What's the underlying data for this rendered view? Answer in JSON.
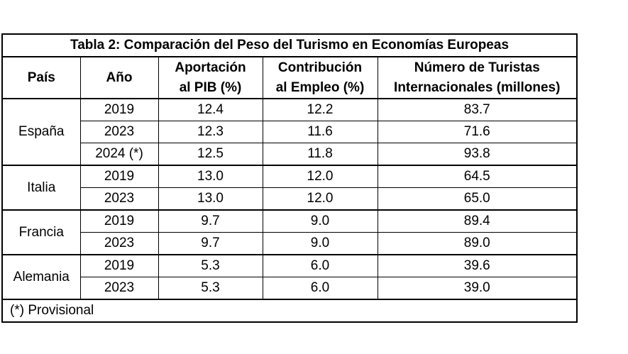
{
  "table": {
    "title": "Tabla 2: Comparación del Peso del Turismo en Economías Europeas",
    "headers": {
      "country": "País",
      "year": "Año",
      "gdp_line1": "Aportación",
      "gdp_line2": "al PIB (%)",
      "emp_line1": "Contribución",
      "emp_line2": "al Empleo (%)",
      "tour_line1": "Número de Turistas",
      "tour_line2": "Internacionales (millones)"
    },
    "groups": [
      {
        "country": "España",
        "rows": [
          {
            "year": "2019",
            "gdp": "12.4",
            "employment": "12.2",
            "tourists": "83.7"
          },
          {
            "year": "2023",
            "gdp": "12.3",
            "employment": "11.6",
            "tourists": "71.6"
          },
          {
            "year": "2024 (*)",
            "gdp": "12.5",
            "employment": "11.8",
            "tourists": "93.8"
          }
        ]
      },
      {
        "country": "Italia",
        "rows": [
          {
            "year": "2019",
            "gdp": "13.0",
            "employment": "12.0",
            "tourists": "64.5"
          },
          {
            "year": "2023",
            "gdp": "13.0",
            "employment": "12.0",
            "tourists": "65.0"
          }
        ]
      },
      {
        "country": "Francia",
        "rows": [
          {
            "year": "2019",
            "gdp": "9.7",
            "employment": "9.0",
            "tourists": "89.4"
          },
          {
            "year": "2023",
            "gdp": "9.7",
            "employment": "9.0",
            "tourists": "89.0"
          }
        ]
      },
      {
        "country": "Alemania",
        "rows": [
          {
            "year": "2019",
            "gdp": "5.3",
            "employment": "6.0",
            "tourists": "39.6"
          },
          {
            "year": "2023",
            "gdp": "5.3",
            "employment": "6.0",
            "tourists": "39.0"
          }
        ]
      }
    ],
    "footnote": "(*) Provisional"
  }
}
